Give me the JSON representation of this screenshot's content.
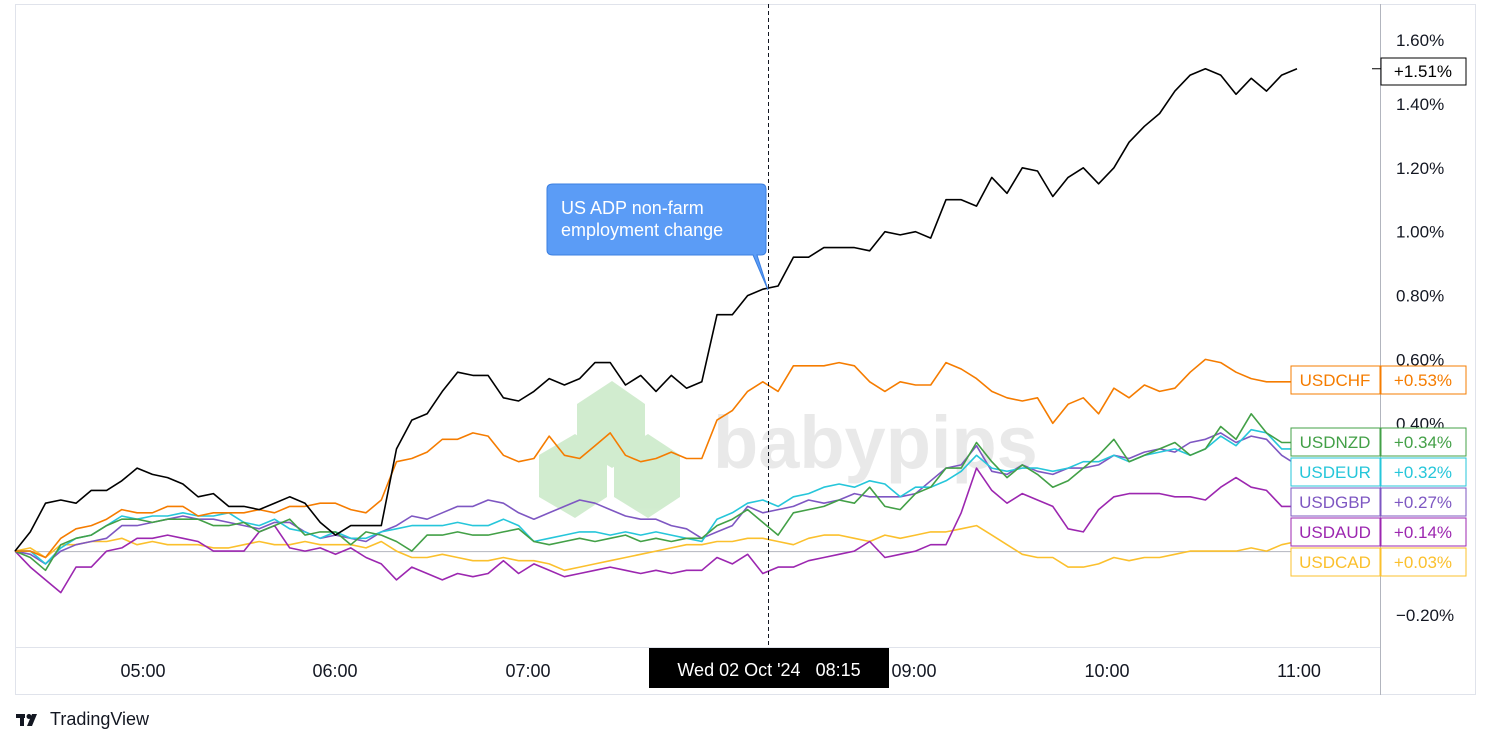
{
  "chart_data": {
    "type": "line",
    "title": "",
    "xlabel": "",
    "ylabel": "",
    "y_unit": "%",
    "ylim": [
      -0.31,
      1.68
    ],
    "y_ticks": [
      {
        "v": 1.6,
        "label": "1.60%"
      },
      {
        "v": 1.4,
        "label": "1.40%"
      },
      {
        "v": 1.2,
        "label": "1.20%"
      },
      {
        "v": 1.0,
        "label": "1.00%"
      },
      {
        "v": 0.8,
        "label": "0.80%"
      },
      {
        "v": 0.6,
        "label": "0.60%"
      },
      {
        "v": 0.4,
        "label": "0.40%"
      },
      {
        "v": -0.2,
        "label": "−0.20%"
      }
    ],
    "x_ticks": [
      "05:00",
      "06:00",
      "07:00",
      "09:00",
      "10:00",
      "11:00"
    ],
    "crosshair_label": "Wed 02 Oct '24   08:15",
    "zero_line": 0,
    "annotation": {
      "lines": [
        "US ADP non-farm",
        "employment change"
      ],
      "color": "#5b9cf6"
    },
    "watermark": "babypips",
    "series": [
      {
        "name": "",
        "price_label": "+1.51%",
        "color": "#000000",
        "values": [
          0.0,
          0.06,
          0.15,
          0.16,
          0.15,
          0.19,
          0.19,
          0.22,
          0.26,
          0.24,
          0.23,
          0.21,
          0.17,
          0.18,
          0.14,
          0.14,
          0.13,
          0.15,
          0.17,
          0.15,
          0.09,
          0.05,
          0.08,
          0.08,
          0.08,
          0.32,
          0.41,
          0.43,
          0.5,
          0.56,
          0.55,
          0.55,
          0.48,
          0.47,
          0.5,
          0.54,
          0.52,
          0.54,
          0.59,
          0.59,
          0.52,
          0.55,
          0.5,
          0.55,
          0.51,
          0.53,
          0.74,
          0.74,
          0.8,
          0.82,
          0.83,
          0.92,
          0.92,
          0.95,
          0.95,
          0.95,
          0.94,
          1.0,
          0.99,
          1.0,
          0.98,
          1.1,
          1.1,
          1.08,
          1.17,
          1.12,
          1.2,
          1.19,
          1.11,
          1.17,
          1.2,
          1.15,
          1.2,
          1.28,
          1.33,
          1.37,
          1.44,
          1.49,
          1.51,
          1.49,
          1.43,
          1.48,
          1.44,
          1.49,
          1.51
        ]
      },
      {
        "name": "USDCHF",
        "price_label": "+0.53%",
        "color": "#f57c00",
        "values": [
          0.0,
          0.0,
          -0.02,
          0.04,
          0.07,
          0.08,
          0.1,
          0.13,
          0.12,
          0.12,
          0.14,
          0.14,
          0.11,
          0.12,
          0.12,
          0.12,
          0.13,
          0.12,
          0.14,
          0.14,
          0.15,
          0.15,
          0.13,
          0.12,
          0.16,
          0.28,
          0.29,
          0.31,
          0.35,
          0.35,
          0.37,
          0.36,
          0.3,
          0.28,
          0.29,
          0.36,
          0.3,
          0.29,
          0.33,
          0.37,
          0.3,
          0.28,
          0.29,
          0.31,
          0.29,
          0.29,
          0.41,
          0.44,
          0.5,
          0.53,
          0.5,
          0.58,
          0.58,
          0.58,
          0.59,
          0.58,
          0.53,
          0.5,
          0.53,
          0.52,
          0.52,
          0.59,
          0.57,
          0.54,
          0.5,
          0.48,
          0.47,
          0.48,
          0.4,
          0.46,
          0.48,
          0.43,
          0.51,
          0.48,
          0.52,
          0.5,
          0.51,
          0.56,
          0.6,
          0.59,
          0.56,
          0.54,
          0.53,
          0.53,
          0.53
        ]
      },
      {
        "name": "USDNZD",
        "price_label": "+0.34%",
        "color": "#43a047",
        "values": [
          0.0,
          -0.02,
          -0.06,
          0.02,
          0.04,
          0.05,
          0.08,
          0.1,
          0.1,
          0.09,
          0.1,
          0.1,
          0.1,
          0.08,
          0.08,
          0.09,
          0.06,
          0.08,
          0.1,
          0.05,
          0.06,
          0.06,
          0.02,
          0.06,
          0.05,
          0.03,
          0.0,
          0.05,
          0.05,
          0.06,
          0.05,
          0.05,
          0.06,
          0.07,
          0.03,
          0.02,
          0.03,
          0.04,
          0.03,
          0.04,
          0.05,
          0.03,
          0.04,
          0.03,
          0.04,
          0.04,
          0.08,
          0.1,
          0.13,
          0.09,
          0.05,
          0.12,
          0.13,
          0.14,
          0.16,
          0.15,
          0.2,
          0.14,
          0.13,
          0.18,
          0.2,
          0.26,
          0.26,
          0.34,
          0.28,
          0.23,
          0.27,
          0.24,
          0.2,
          0.22,
          0.26,
          0.3,
          0.35,
          0.28,
          0.3,
          0.32,
          0.34,
          0.3,
          0.32,
          0.39,
          0.35,
          0.43,
          0.37,
          0.34,
          0.34
        ]
      },
      {
        "name": "USDEUR",
        "price_label": "+0.32%",
        "color": "#26c6da",
        "values": [
          0.0,
          0.0,
          -0.04,
          0.01,
          0.04,
          0.05,
          0.08,
          0.11,
          0.1,
          0.11,
          0.11,
          0.12,
          0.11,
          0.11,
          0.12,
          0.09,
          0.08,
          0.1,
          0.07,
          0.06,
          0.04,
          0.06,
          0.04,
          0.04,
          0.06,
          0.07,
          0.08,
          0.08,
          0.08,
          0.09,
          0.08,
          0.08,
          0.1,
          0.08,
          0.03,
          0.04,
          0.05,
          0.06,
          0.06,
          0.05,
          0.06,
          0.05,
          0.06,
          0.05,
          0.04,
          0.03,
          0.1,
          0.12,
          0.15,
          0.16,
          0.14,
          0.17,
          0.18,
          0.2,
          0.21,
          0.2,
          0.22,
          0.21,
          0.17,
          0.2,
          0.2,
          0.22,
          0.25,
          0.3,
          0.26,
          0.25,
          0.26,
          0.26,
          0.25,
          0.26,
          0.28,
          0.28,
          0.3,
          0.28,
          0.3,
          0.31,
          0.32,
          0.3,
          0.32,
          0.36,
          0.33,
          0.38,
          0.37,
          0.32,
          0.32
        ]
      },
      {
        "name": "USDGBP",
        "price_label": "+0.27%",
        "color": "#7e57c2",
        "values": [
          0.0,
          -0.01,
          -0.04,
          0.0,
          0.02,
          0.03,
          0.04,
          0.08,
          0.08,
          0.09,
          0.1,
          0.11,
          0.1,
          0.1,
          0.09,
          0.08,
          0.07,
          0.09,
          0.09,
          0.06,
          0.04,
          0.05,
          0.04,
          0.03,
          0.06,
          0.08,
          0.11,
          0.1,
          0.12,
          0.14,
          0.14,
          0.16,
          0.15,
          0.12,
          0.1,
          0.12,
          0.14,
          0.16,
          0.15,
          0.13,
          0.11,
          0.1,
          0.1,
          0.08,
          0.07,
          0.04,
          0.06,
          0.08,
          0.14,
          0.12,
          0.13,
          0.14,
          0.16,
          0.15,
          0.16,
          0.18,
          0.17,
          0.17,
          0.17,
          0.18,
          0.22,
          0.26,
          0.27,
          0.33,
          0.25,
          0.24,
          0.27,
          0.25,
          0.24,
          0.26,
          0.26,
          0.27,
          0.3,
          0.29,
          0.31,
          0.32,
          0.31,
          0.34,
          0.35,
          0.37,
          0.34,
          0.36,
          0.35,
          0.3,
          0.27
        ]
      },
      {
        "name": "USDAUD",
        "price_label": "+0.14%",
        "color": "#9c27b0",
        "values": [
          0.0,
          -0.05,
          -0.09,
          -0.13,
          -0.05,
          -0.05,
          0.0,
          0.01,
          0.04,
          0.04,
          0.05,
          0.04,
          0.03,
          0.0,
          0.0,
          0.0,
          0.06,
          0.08,
          0.01,
          0.0,
          0.01,
          -0.01,
          0.01,
          -0.02,
          -0.04,
          -0.09,
          -0.05,
          -0.07,
          -0.09,
          -0.07,
          -0.08,
          -0.07,
          -0.03,
          -0.07,
          -0.04,
          -0.06,
          -0.08,
          -0.07,
          -0.06,
          -0.05,
          -0.06,
          -0.07,
          -0.06,
          -0.07,
          -0.06,
          -0.06,
          -0.02,
          -0.04,
          -0.01,
          -0.07,
          -0.05,
          -0.05,
          -0.03,
          -0.02,
          -0.01,
          0.0,
          0.03,
          -0.02,
          -0.01,
          0.0,
          0.02,
          0.02,
          0.12,
          0.26,
          0.19,
          0.15,
          0.18,
          0.16,
          0.14,
          0.07,
          0.06,
          0.13,
          0.17,
          0.18,
          0.18,
          0.18,
          0.17,
          0.17,
          0.16,
          0.2,
          0.23,
          0.2,
          0.19,
          0.14,
          0.14
        ]
      },
      {
        "name": "USDCAD",
        "price_label": "+0.03%",
        "color": "#fbc02d",
        "values": [
          0.0,
          0.01,
          -0.02,
          0.02,
          0.02,
          0.03,
          0.03,
          0.04,
          0.02,
          0.03,
          0.02,
          0.02,
          0.02,
          0.01,
          0.01,
          0.02,
          0.03,
          0.02,
          0.02,
          0.03,
          0.02,
          0.02,
          0.02,
          0.01,
          0.03,
          0.0,
          -0.02,
          -0.02,
          -0.01,
          -0.02,
          -0.03,
          -0.03,
          -0.02,
          -0.03,
          -0.03,
          -0.04,
          -0.06,
          -0.05,
          -0.04,
          -0.03,
          -0.02,
          -0.01,
          0.0,
          0.01,
          0.02,
          0.02,
          0.03,
          0.03,
          0.04,
          0.04,
          0.03,
          0.02,
          0.04,
          0.05,
          0.05,
          0.04,
          0.03,
          0.05,
          0.04,
          0.05,
          0.06,
          0.06,
          0.07,
          0.08,
          0.05,
          0.02,
          -0.01,
          -0.02,
          -0.02,
          -0.05,
          -0.05,
          -0.04,
          -0.02,
          -0.03,
          -0.02,
          -0.02,
          -0.01,
          0.0,
          0.0,
          0.0,
          0.0,
          0.01,
          0.0,
          0.02,
          0.03
        ]
      }
    ]
  },
  "footer": {
    "brand": "TradingView"
  }
}
